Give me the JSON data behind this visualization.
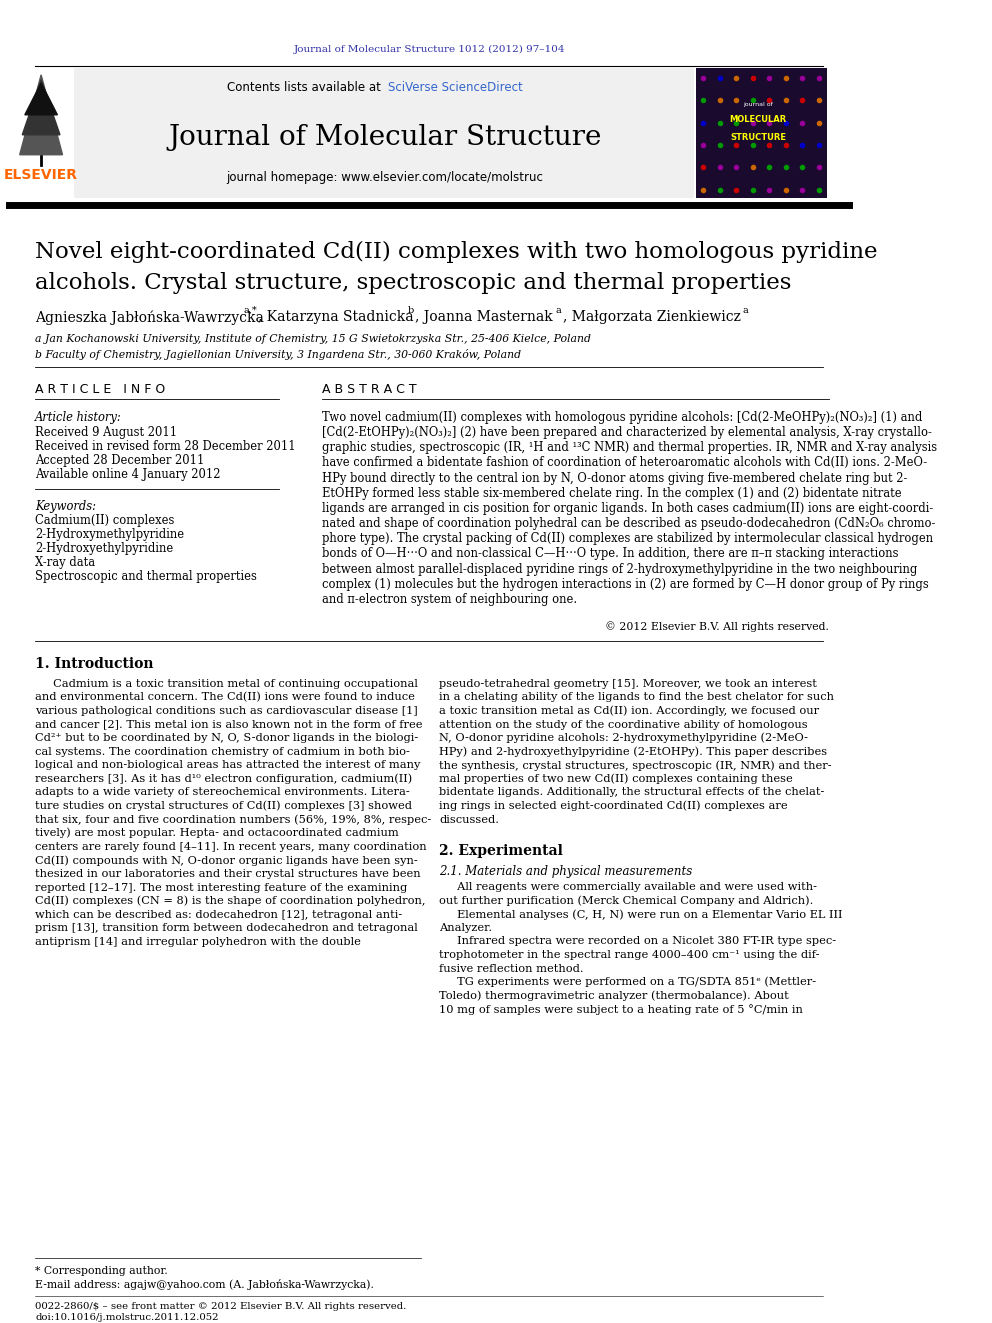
{
  "page_width": 9.92,
  "page_height": 13.23,
  "bg_color": "#ffffff",
  "journal_ref": "Journal of Molecular Structure 1012 (2012) 97–104",
  "journal_ref_color": "#3333aa",
  "contents_text": "Contents lists available at ",
  "sciverse_text": "SciVerse ScienceDirect",
  "sciverse_color": "#3366cc",
  "journal_title": "Journal of Molecular Structure",
  "homepage_text": "journal homepage: www.elsevier.com/locate/molstruc",
  "elsevier_color": "#ff6600",
  "article_title_line1": "Novel eight-coordinated Cd(II) complexes with two homologous pyridine",
  "article_title_line2": "alcohols. Crystal structure, spectroscopic and thermal properties",
  "affil_a": "a Jan Kochanowski University, Institute of Chemistry, 15 G Swietokrzyska Str., 25-406 Kielce, Poland",
  "affil_b": "b Faculty of Chemistry, Jagiellonian University, 3 Ingardena Str., 30-060 Kraków, Poland",
  "article_info_title": "A R T I C L E   I N F O",
  "abstract_title": "A B S T R A C T",
  "history_label": "Article history:",
  "received1": "Received 9 August 2011",
  "received2": "Received in revised form 28 December 2011",
  "accepted": "Accepted 28 December 2011",
  "available": "Available online 4 January 2012",
  "keywords_label": "Keywords:",
  "kw1": "Cadmium(II) complexes",
  "kw2": "2-Hydroxymethylpyridine",
  "kw3": "2-Hydroxyethylpyridine",
  "kw4": "X-ray data",
  "kw5": "Spectroscopic and thermal properties",
  "copyright": "© 2012 Elsevier B.V. All rights reserved.",
  "intro_title": "1. Introduction",
  "section2_title": "2. Experimental",
  "section21_title": "2.1. Materials and physical measurements",
  "footnote_star": "* Corresponding author.",
  "footnote_email": "E-mail address: agajw@yahoo.com (A. Jabłońska-Wawrzycka).",
  "footer_issn": "0022-2860/$ – see front matter © 2012 Elsevier B.V. All rights reserved.",
  "footer_doi": "doi:10.1016/j.molstruc.2011.12.052",
  "abstract_lines": [
    "Two novel cadmium(II) complexes with homologous pyridine alcohols: [Cd(2-MeOHPy)₂(NO₃)₂] (1) and",
    "[Cd(2-EtOHPy)₂(NO₃)₂] (2) have been prepared and characterized by elemental analysis, X-ray crystallo-",
    "graphic studies, spectroscopic (IR, ¹H and ¹³C NMR) and thermal properties. IR, NMR and X-ray analysis",
    "have confirmed a bidentate fashion of coordination of heteroaromatic alcohols with Cd(II) ions. 2-MeO-",
    "HPy bound directly to the central ion by N, O-donor atoms giving five-membered chelate ring but 2-",
    "EtOHPy formed less stable six-membered chelate ring. In the complex (1) and (2) bidentate nitrate",
    "ligands are arranged in cis position for organic ligands. In both cases cadmium(II) ions are eight-coordi-",
    "nated and shape of coordination polyhedral can be described as pseudo-dodecahedron (CdN₂O₆ chromo-",
    "phore type). The crystal packing of Cd(II) complexes are stabilized by intermolecular classical hydrogen",
    "bonds of O—H···O and non-classical C—H···O type. In addition, there are π–π stacking interactions",
    "between almost parallel-displaced pyridine rings of 2-hydroxymethylpyridine in the two neighbouring",
    "complex (1) molecules but the hydrogen interactions in (2) are formed by C—H donor group of Py rings",
    "and π-electron system of neighbouring one."
  ],
  "intro_lines_left": [
    "     Cadmium is a toxic transition metal of continuing occupational",
    "and environmental concern. The Cd(II) ions were found to induce",
    "various pathological conditions such as cardiovascular disease [1]",
    "and cancer [2]. This metal ion is also known not in the form of free",
    "Cd²⁺ but to be coordinated by N, O, S-donor ligands in the biologi-",
    "cal systems. The coordination chemistry of cadmium in both bio-",
    "logical and non-biological areas has attracted the interest of many",
    "researchers [3]. As it has d¹⁰ electron configuration, cadmium(II)",
    "adapts to a wide variety of stereochemical environments. Litera-",
    "ture studies on crystal structures of Cd(II) complexes [3] showed",
    "that six, four and five coordination numbers (56%, 19%, 8%, respec-",
    "tively) are most popular. Hepta- and octacoordinated cadmium",
    "centers are rarely found [4–11]. In recent years, many coordination",
    "Cd(II) compounds with N, O-donor organic ligands have been syn-",
    "thesized in our laboratories and their crystal structures have been",
    "reported [12–17]. The most interesting feature of the examining",
    "Cd(II) complexes (CN = 8) is the shape of coordination polyhedron,",
    "which can be described as: dodecahedron [12], tetragonal anti-",
    "prism [13], transition form between dodecahedron and tetragonal",
    "antiprism [14] and irregular polyhedron with the double"
  ],
  "intro_lines_right": [
    "pseudo-tetrahedral geometry [15]. Moreover, we took an interest",
    "in a chelating ability of the ligands to find the best chelator for such",
    "a toxic transition metal as Cd(II) ion. Accordingly, we focused our",
    "attention on the study of the coordinative ability of homologous",
    "N, O-donor pyridine alcohols: 2-hydroxymethylpyridine (2-MeO-",
    "HPy) and 2-hydroxyethylpyridine (2-EtOHPy). This paper describes",
    "the synthesis, crystal structures, spectroscopic (IR, NMR) and ther-",
    "mal properties of two new Cd(II) complexes containing these",
    "bidentate ligands. Additionally, the structural effects of the chelat-",
    "ing rings in selected eight-coordinated Cd(II) complexes are",
    "discussed."
  ],
  "s21_lines": [
    "     All reagents were commercially available and were used with-",
    "out further purification (Merck Chemical Company and Aldrich).",
    "     Elemental analyses (C, H, N) were run on a Elementar Vario EL III",
    "Analyzer.",
    "     Infrared spectra were recorded on a Nicolet 380 FT-IR type spec-",
    "trophotometer in the spectral range 4000–400 cm⁻¹ using the dif-",
    "fusive reflection method.",
    "     TG experiments were performed on a TG/SDTA 851ᵉ (Mettler-",
    "Toledo) thermogravimetric analyzer (thermobalance). About",
    "10 mg of samples were subject to a heating rate of 5 °C/min in"
  ]
}
